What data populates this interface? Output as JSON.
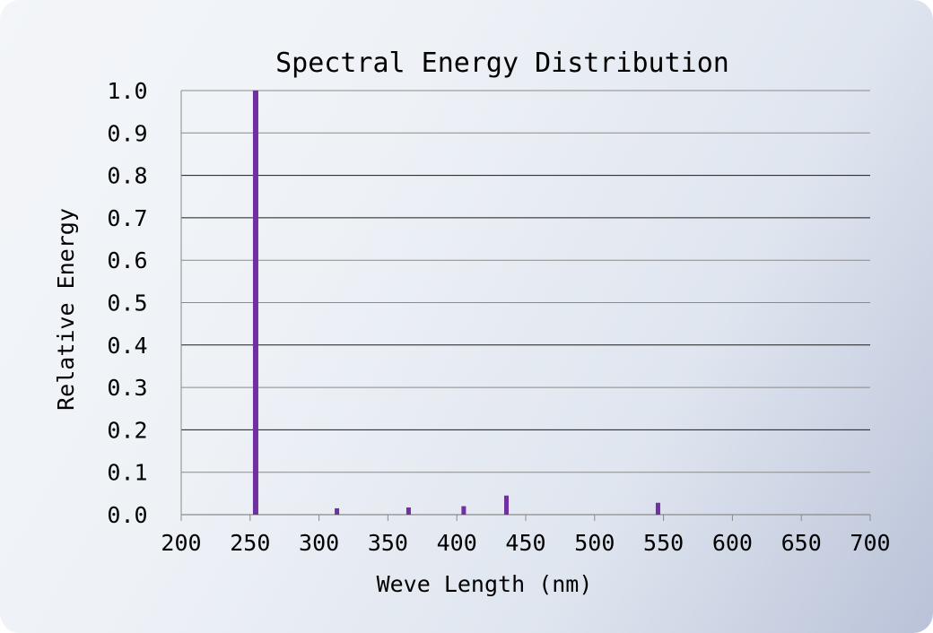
{
  "chart_data": {
    "type": "bar",
    "title": "Spectral Energy Distribution",
    "xlabel": "Weve Length (nm)",
    "ylabel": "Relative Energy",
    "xlim": [
      200,
      700
    ],
    "ylim": [
      0,
      1.0
    ],
    "x_ticks": [
      200,
      250,
      300,
      350,
      400,
      450,
      500,
      550,
      600,
      650,
      700
    ],
    "x_tick_labels": [
      "200",
      "250",
      "300",
      "350",
      "400",
      "450",
      "500",
      "550",
      "600",
      "650",
      "700"
    ],
    "y_ticks": [
      0,
      0.1,
      0.2,
      0.3,
      0.4,
      0.5,
      0.6,
      0.7,
      0.8,
      0.9,
      1.0
    ],
    "y_tick_labels": [
      "0.0",
      "0.1",
      "0.2",
      "0.3",
      "0.4",
      "0.5",
      "0.6",
      "0.7",
      "0.8",
      "0.9",
      "1.0"
    ],
    "grid": true,
    "legend": "none",
    "bar_color": "#7030a0",
    "points": [
      {
        "x": 254,
        "y": 1.0
      },
      {
        "x": 313,
        "y": 0.015
      },
      {
        "x": 365,
        "y": 0.017
      },
      {
        "x": 405,
        "y": 0.02
      },
      {
        "x": 436,
        "y": 0.045
      },
      {
        "x": 546,
        "y": 0.028
      }
    ]
  }
}
